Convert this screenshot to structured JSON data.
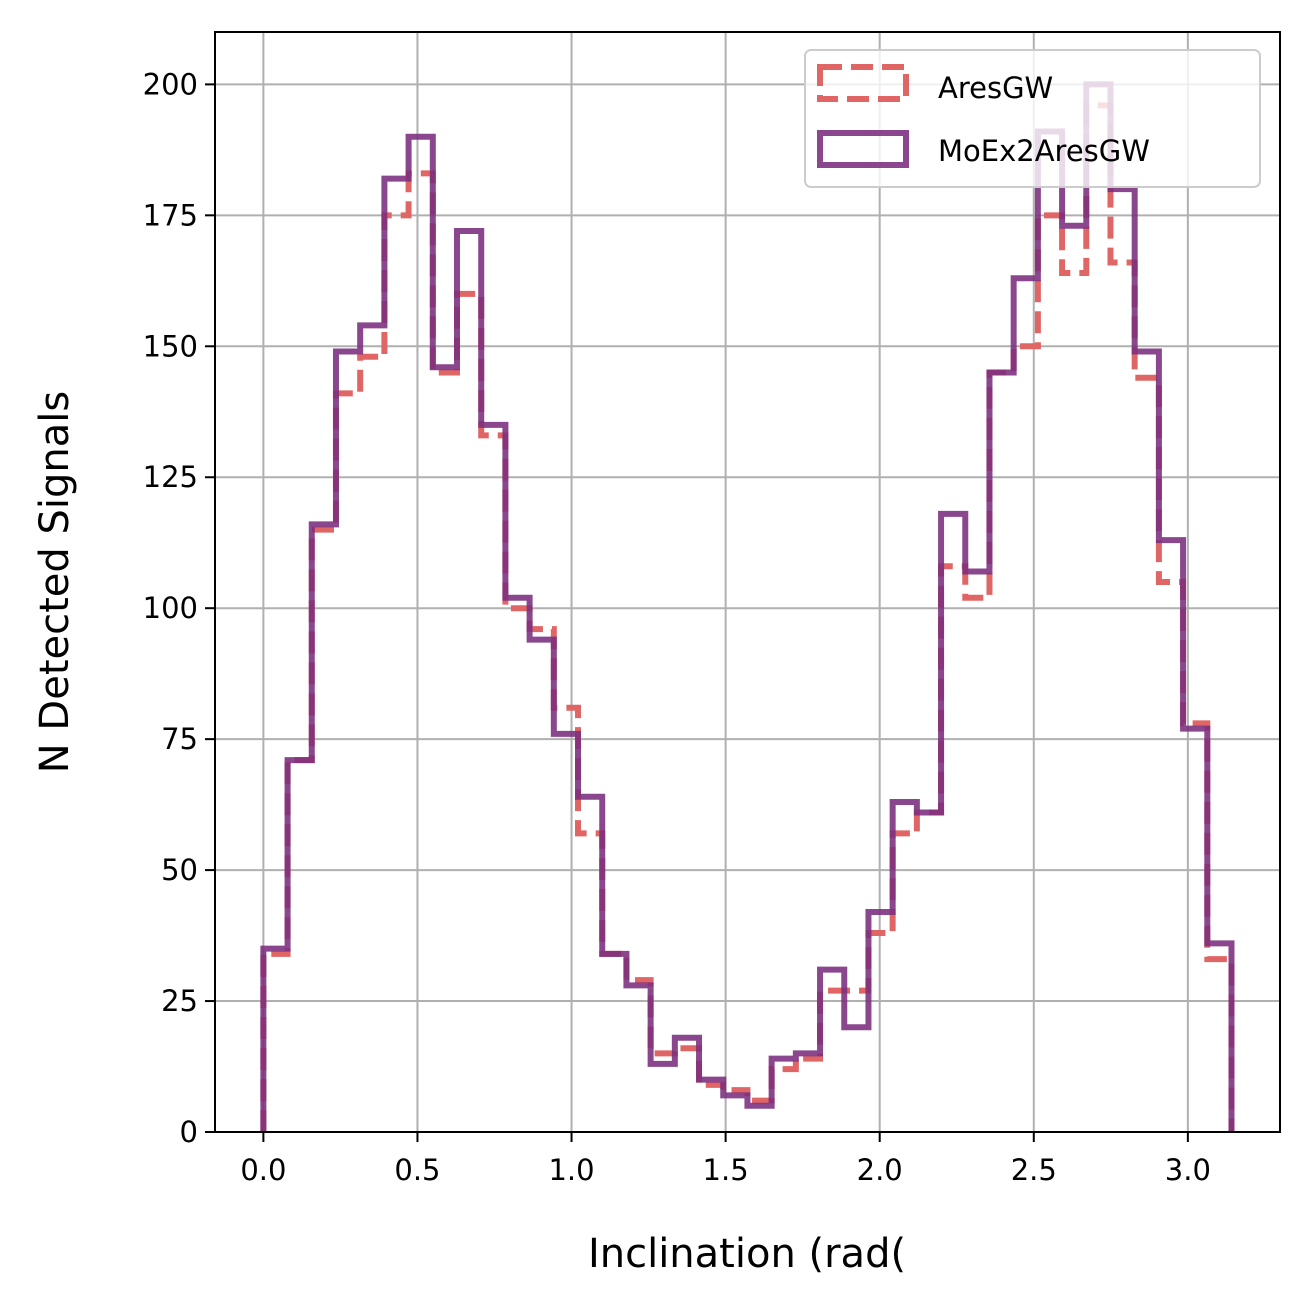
{
  "chart_data": {
    "type": "histogram",
    "xlabel": "Inclination (rad(",
    "ylabel": "N Detected Signals",
    "xlim": [
      -0.157,
      3.299
    ],
    "ylim": [
      0,
      210
    ],
    "x_ticks": [
      0.0,
      0.5,
      1.0,
      1.5,
      2.0,
      2.5,
      3.0
    ],
    "x_tick_labels": [
      "0.0",
      "0.5",
      "1.0",
      "1.5",
      "2.0",
      "2.5",
      "3.0"
    ],
    "y_ticks": [
      0,
      25,
      50,
      75,
      100,
      125,
      150,
      175,
      200
    ],
    "y_tick_labels": [
      "0",
      "25",
      "50",
      "75",
      "100",
      "125",
      "150",
      "175",
      "200"
    ],
    "grid": true,
    "legend_position": "upper right",
    "bin_edges": [
      0.0,
      0.0785,
      0.157,
      0.2356,
      0.3141,
      0.3927,
      0.4712,
      0.5498,
      0.6283,
      0.7069,
      0.7854,
      0.8639,
      0.9425,
      1.021,
      1.0996,
      1.1781,
      1.2566,
      1.3352,
      1.4137,
      1.4923,
      1.5708,
      1.6493,
      1.7279,
      1.8064,
      1.885,
      1.9635,
      2.042,
      2.1206,
      2.1991,
      2.2777,
      2.3562,
      2.4347,
      2.5133,
      2.5918,
      2.6704,
      2.7489,
      2.8274,
      2.906,
      2.9845,
      3.0631,
      3.1416
    ],
    "series": [
      {
        "name": "AresGW",
        "style": "dashed",
        "color": "#e06666",
        "values": [
          34,
          71,
          115,
          141,
          148,
          175,
          183,
          145,
          160,
          133,
          100,
          96,
          81,
          57,
          34,
          29,
          15,
          16,
          9,
          8,
          6,
          12,
          14,
          27,
          27,
          38,
          57,
          61,
          108,
          102,
          145,
          150,
          175,
          164,
          196,
          166,
          144,
          105,
          78,
          33
        ]
      },
      {
        "name": "MoEx2AresGW",
        "style": "solid",
        "color": "#7b2d7e",
        "values": [
          35,
          71,
          116,
          149,
          154,
          182,
          190,
          146,
          172,
          135,
          102,
          94,
          76,
          64,
          34,
          28,
          13,
          18,
          10,
          7,
          5,
          14,
          15,
          31,
          20,
          42,
          63,
          61,
          118,
          107,
          145,
          163,
          191,
          173,
          200,
          180,
          149,
          113,
          77,
          36
        ]
      }
    ]
  }
}
